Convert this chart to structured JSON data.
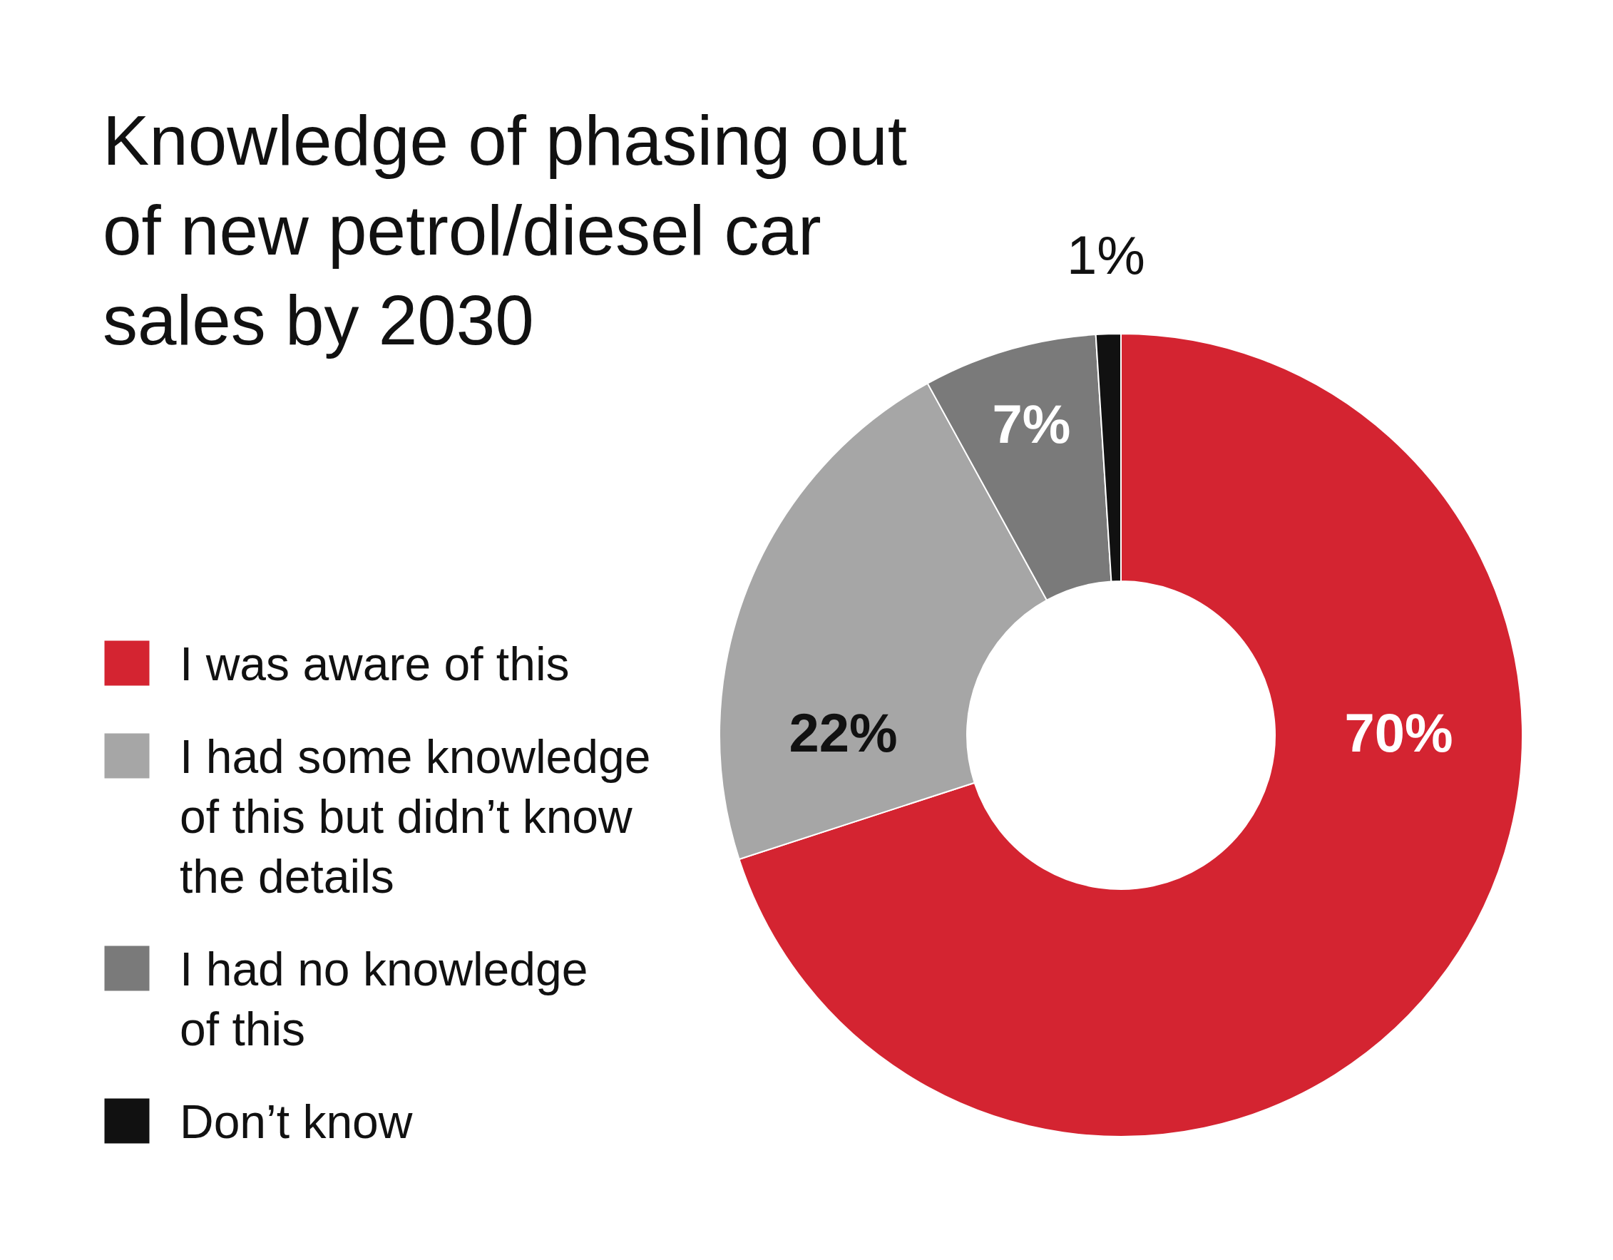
{
  "chart_data": {
    "type": "donut",
    "title": "Knowledge of phasing out\nof new petrol/diesel car\nsales by 2030",
    "categories": [
      "I was aware of this",
      "I had some knowledge\nof this but didn’t know\nthe details",
      "I had no knowledge\nof this",
      "Don’t know"
    ],
    "values": [
      70,
      22,
      7,
      1
    ],
    "colors": [
      "#d42431",
      "#a6a6a6",
      "#7a7a7a",
      "#111111"
    ],
    "value_labels": [
      "70%",
      "22%",
      "7%",
      "1%"
    ],
    "legend": "left"
  }
}
